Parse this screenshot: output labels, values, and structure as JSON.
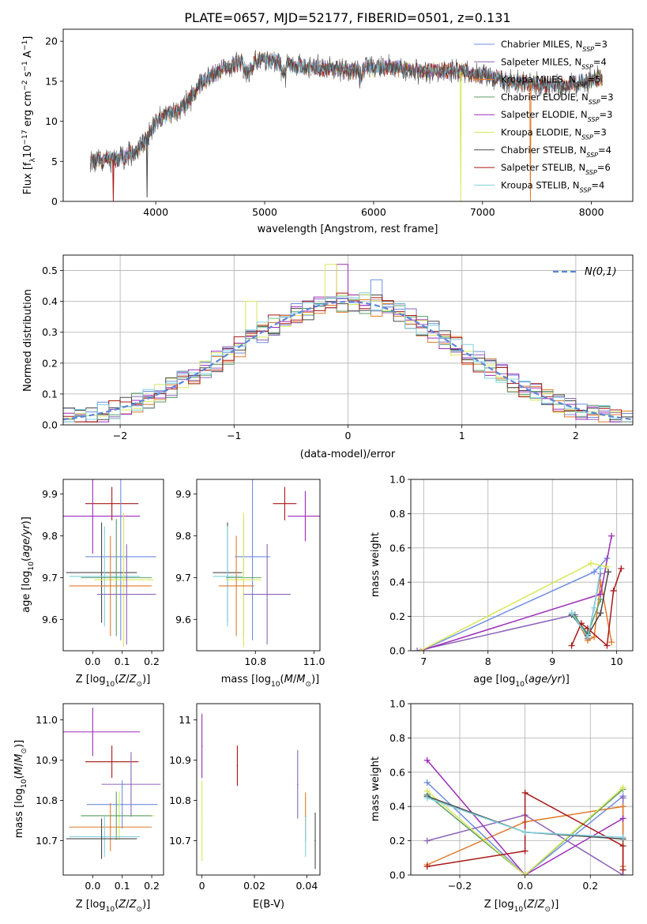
{
  "chart_data": [
    {
      "id": "spectrum",
      "type": "line",
      "title": "PLATE=0657, MJD=52177, FIBERID=0501, z=0.131",
      "xlabel": "wavelength [Angstrom, rest frame]",
      "ylabel": "Flux [fλ10⁻¹⁷ erg cm⁻² s⁻¹ A⁻¹]",
      "xlim": [
        3150,
        8380
      ],
      "ylim": [
        0,
        21.5
      ],
      "xticks": [
        4000,
        5000,
        6000,
        7000,
        8000
      ],
      "yticks": [
        0,
        5,
        10,
        15,
        20
      ],
      "grid": false,
      "legend_position": "right",
      "series": [
        {
          "name": "Chabrier MILES, NSSP=3",
          "color": "#6f8ee0"
        },
        {
          "name": "Salpeter MILES, NSSP=4",
          "color": "#8c64b8"
        },
        {
          "name": "Kroupa MILES, NSSP=5",
          "color": "#e07a2a"
        },
        {
          "name": "Chabrier ELODIE, NSSP=3",
          "color": "#5a9e6a"
        },
        {
          "name": "Salpeter ELODIE, NSSP=3",
          "color": "#9e2cb8"
        },
        {
          "name": "Kroupa ELODIE, NSSP=3",
          "color": "#d8e85a"
        },
        {
          "name": "Chabrier STELIB, NSSP=4",
          "color": "#4a4a4a"
        },
        {
          "name": "Salpeter STELIB, NSSP=6",
          "color": "#aa1818"
        },
        {
          "name": "Kroupa STELIB, NSSP=4",
          "color": "#7fd0e0"
        }
      ],
      "continuum": {
        "x": [
          3400,
          3600,
          3800,
          3900,
          4000,
          4100,
          4200,
          4300,
          4400,
          4500,
          4600,
          4700,
          4800,
          4900,
          5000,
          5200,
          5400,
          5600,
          5800,
          6000,
          6200,
          6400,
          6600,
          6800,
          7000,
          7200,
          7400,
          7600,
          7800,
          8000,
          8100
        ],
        "y": [
          5,
          5.2,
          6,
          7.5,
          10,
          10.7,
          11.2,
          12.5,
          14.5,
          15.6,
          16.5,
          17,
          17.5,
          17.5,
          17.6,
          17.3,
          16.8,
          16.6,
          16.3,
          16.7,
          16.7,
          16.2,
          16.3,
          16.2,
          15.8,
          15.1,
          14.7,
          14.4,
          14.5,
          15.2,
          15.4
        ]
      },
      "dips": [
        {
          "x": 3610,
          "y": 0,
          "series": "Salpeter STELIB, NSSP=6"
        },
        {
          "x": 3920,
          "y": 0.5,
          "series": "Chabrier STELIB, NSSP=4"
        },
        {
          "x": 6800,
          "y": 0,
          "series": "Kroupa ELODIE, NSSP=3"
        },
        {
          "x": 7440,
          "y": 0,
          "series": "Kroupa MILES, NSSP=5"
        }
      ]
    },
    {
      "id": "residuals",
      "type": "line",
      "xlabel": "(data-model)/error",
      "ylabel": "Normed distribution",
      "xlim": [
        -2.5,
        2.5
      ],
      "ylim": [
        0,
        0.55
      ],
      "xticks": [
        -2,
        -1,
        0,
        1,
        2
      ],
      "yticks": [
        0.0,
        0.1,
        0.2,
        0.3,
        0.4,
        0.5
      ],
      "grid": true,
      "legend": {
        "label": "N(0,1)",
        "position": "upper right"
      },
      "bin_width": 0.1,
      "gaussian": {
        "mean": 0,
        "sigma": 1
      },
      "histogram_peaks": [
        {
          "x": -0.15,
          "y": 0.52,
          "series": "Kroupa ELODIE, NSSP=3"
        },
        {
          "x": -0.05,
          "y": 0.52,
          "series": "Salpeter ELODIE, NSSP=3"
        },
        {
          "x": 0.25,
          "y": 0.47,
          "series": "Chabrier MILES, NSSP=3"
        },
        {
          "x": -0.85,
          "y": 0.4,
          "series": "Kroupa ELODIE, NSSP=3"
        }
      ]
    },
    {
      "id": "age_vs_Z",
      "type": "scatter",
      "xlabel": "Z [log10(Z/Z⊙)]",
      "ylabel": "age  [log10(age/yr)]",
      "xlim": [
        -0.1,
        0.24
      ],
      "ylim": [
        9.525,
        9.935
      ],
      "xticks": [
        0.0,
        0.1,
        0.2
      ],
      "yticks": [
        9.6,
        9.7,
        9.8,
        9.9
      ],
      "points": [
        {
          "series": "Salpeter STELIB, NSSP=6",
          "x": 0.065,
          "xerr": 0.09,
          "y": 9.877,
          "yerr": 0.04
        },
        {
          "series": "Salpeter ELODIE, NSSP=3",
          "x": 0.0,
          "xerr": 0.16,
          "y": 9.847,
          "yerr": 0.09
        },
        {
          "series": "Chabrier MILES, NSSP=3",
          "x": 0.095,
          "xerr": 0.12,
          "y": 9.75,
          "yerr": 0.2
        },
        {
          "series": "Chabrier STELIB, NSSP=4",
          "x": 0.03,
          "xerr": 0.12,
          "y": 9.712,
          "yerr": 0.12
        },
        {
          "series": "Kroupa STELIB, NSSP=4",
          "x": 0.04,
          "xerr": 0.12,
          "y": 9.703,
          "yerr": 0.12
        },
        {
          "series": "Chabrier ELODIE, NSSP=3",
          "x": 0.08,
          "xerr": 0.12,
          "y": 9.7,
          "yerr": 0.14
        },
        {
          "series": "Kroupa ELODIE, NSSP=3",
          "x": 0.105,
          "xerr": 0.1,
          "y": 9.695,
          "yerr": 0.16
        },
        {
          "series": "Kroupa MILES, NSSP=5",
          "x": 0.06,
          "xerr": 0.14,
          "y": 9.68,
          "yerr": 0.12
        },
        {
          "series": "Salpeter MILES, NSSP=4",
          "x": 0.115,
          "xerr": 0.1,
          "y": 9.66,
          "yerr": 0.12
        }
      ]
    },
    {
      "id": "age_vs_mass",
      "type": "scatter",
      "xlabel": "mass [log10(M/M⊙)]",
      "ylabel": "",
      "xlim": [
        10.6,
        11.02
      ],
      "ylim": [
        9.525,
        9.935
      ],
      "xticks": [
        10.8,
        11.0
      ],
      "yticks": [
        9.6,
        9.7,
        9.8,
        9.9
      ],
      "points": [
        {
          "series": "Salpeter STELIB, NSSP=6",
          "x": 10.9,
          "xerr": 0.04,
          "y": 9.877,
          "yerr": 0.04
        },
        {
          "series": "Salpeter ELODIE, NSSP=3",
          "x": 10.97,
          "xerr": 0.06,
          "y": 9.847,
          "yerr": 0.06
        },
        {
          "series": "Chabrier MILES, NSSP=3",
          "x": 10.79,
          "xerr": 0.06,
          "y": 9.75,
          "yerr": 0.2
        },
        {
          "series": "Chabrier STELIB, NSSP=4",
          "x": 10.705,
          "xerr": 0.05,
          "y": 9.712,
          "yerr": 0.12
        },
        {
          "series": "Kroupa STELIB, NSSP=4",
          "x": 10.705,
          "xerr": 0.05,
          "y": 9.703,
          "yerr": 0.12
        },
        {
          "series": "Chabrier ELODIE, NSSP=3",
          "x": 10.76,
          "xerr": 0.06,
          "y": 9.7,
          "yerr": 0.14
        },
        {
          "series": "Kroupa ELODIE, NSSP=3",
          "x": 10.76,
          "xerr": 0.06,
          "y": 9.695,
          "yerr": 0.16
        },
        {
          "series": "Kroupa MILES, NSSP=5",
          "x": 10.735,
          "xerr": 0.06,
          "y": 9.68,
          "yerr": 0.12
        },
        {
          "series": "Salpeter MILES, NSSP=4",
          "x": 10.84,
          "xerr": 0.08,
          "y": 9.66,
          "yerr": 0.12
        }
      ]
    },
    {
      "id": "weight_vs_age",
      "type": "line",
      "xlabel": "age  [log10(age/yr)]",
      "ylabel": "mass weight",
      "xlim": [
        6.8,
        10.25
      ],
      "ylim": [
        0,
        1.0
      ],
      "xticks": [
        7,
        8,
        9,
        10
      ],
      "yticks": [
        0.0,
        0.2,
        0.4,
        0.6,
        0.8,
        1.0
      ],
      "grid": true,
      "series": [
        {
          "name": "Chabrier MILES, NSSP=3",
          "x": [
            6.95,
            9.65,
            9.85
          ],
          "y": [
            0.0,
            0.46,
            0.54
          ]
        },
        {
          "name": "Salpeter MILES, NSSP=4",
          "x": [
            6.9,
            9.35,
            9.55,
            9.75
          ],
          "y": [
            0.0,
            0.21,
            0.07,
            0.45
          ]
        },
        {
          "name": "Kroupa MILES, NSSP=5",
          "x": [
            9.35,
            9.55,
            9.65,
            9.75,
            9.92
          ],
          "y": [
            0.2,
            0.06,
            0.08,
            0.4,
            0.05
          ]
        },
        {
          "name": "Chabrier ELODIE, NSSP=3",
          "x": [
            9.35,
            9.55,
            9.75
          ],
          "y": [
            0.2,
            0.1,
            0.3
          ]
        },
        {
          "name": "Salpeter ELODIE, NSSP=3",
          "x": [
            6.95,
            9.75,
            9.92
          ],
          "y": [
            0.0,
            0.33,
            0.67
          ]
        },
        {
          "name": "Kroupa ELODIE, NSSP=3",
          "x": [
            6.95,
            9.6,
            9.85
          ],
          "y": [
            0.0,
            0.51,
            0.49
          ]
        },
        {
          "name": "Chabrier STELIB, NSSP=4",
          "x": [
            9.3,
            9.55,
            9.75,
            9.87
          ],
          "y": [
            0.21,
            0.09,
            0.22,
            0.46
          ]
        },
        {
          "name": "Salpeter STELIB, NSSP=6",
          "x": [
            9.3,
            9.45,
            9.55,
            9.85,
            9.95,
            10.07
          ],
          "y": [
            0.03,
            0.16,
            0.13,
            0.03,
            0.35,
            0.48
          ]
        },
        {
          "name": "Kroupa STELIB, NSSP=4",
          "x": [
            9.3,
            9.55,
            9.65,
            9.75
          ],
          "y": [
            0.22,
            0.08,
            0.25,
            0.48
          ]
        }
      ]
    },
    {
      "id": "mass_vs_Z",
      "type": "scatter",
      "xlabel": "Z [log10(Z/Z⊙)]",
      "ylabel": "mass [log10(M/M⊙)]",
      "xlim": [
        -0.1,
        0.24
      ],
      "ylim": [
        10.615,
        11.04
      ],
      "xticks": [
        0.0,
        0.1,
        0.2
      ],
      "yticks": [
        10.7,
        10.8,
        10.9,
        11.0
      ],
      "points": [
        {
          "series": "Salpeter ELODIE, NSSP=3",
          "x": 0.0,
          "xerr": 0.16,
          "y": 10.97,
          "yerr": 0.06
        },
        {
          "series": "Salpeter STELIB, NSSP=6",
          "x": 0.065,
          "xerr": 0.09,
          "y": 10.896,
          "yerr": 0.04
        },
        {
          "series": "Salpeter MILES, NSSP=4",
          "x": 0.13,
          "xerr": 0.1,
          "y": 10.84,
          "yerr": 0.08
        },
        {
          "series": "Chabrier MILES, NSSP=3",
          "x": 0.1,
          "xerr": 0.12,
          "y": 10.79,
          "yerr": 0.06
        },
        {
          "series": "Kroupa ELODIE, NSSP=3",
          "x": 0.09,
          "xerr": 0.12,
          "y": 10.762,
          "yerr": 0.06
        },
        {
          "series": "Chabrier ELODIE, NSSP=3",
          "x": 0.08,
          "xerr": 0.12,
          "y": 10.762,
          "yerr": 0.06
        },
        {
          "series": "Kroupa MILES, NSSP=5",
          "x": 0.06,
          "xerr": 0.14,
          "y": 10.734,
          "yerr": 0.06
        },
        {
          "series": "Kroupa STELIB, NSSP=4",
          "x": 0.04,
          "xerr": 0.12,
          "y": 10.71,
          "yerr": 0.05
        },
        {
          "series": "Chabrier STELIB, NSSP=4",
          "x": 0.03,
          "xerr": 0.12,
          "y": 10.705,
          "yerr": 0.05
        }
      ]
    },
    {
      "id": "mass_vs_ebv",
      "type": "scatter",
      "xlabel": "E(B-V)",
      "ylabel": "",
      "xlim": [
        -0.002,
        0.045
      ],
      "ylim": [
        10.615,
        11.04
      ],
      "xticks": [
        0.0,
        0.02,
        0.04
      ],
      "yticks": [
        10.7,
        10.8,
        10.9,
        11.0
      ],
      "points": [
        {
          "series": "Salpeter ELODIE, NSSP=3",
          "x": 0.0,
          "y": 10.935,
          "yerr": 0.08
        },
        {
          "series": "Kroupa ELODIE, NSSP=3",
          "x": 0.0,
          "y": 10.75,
          "yerr": 0.1
        },
        {
          "series": "Salpeter STELIB, NSSP=6",
          "x": 0.0135,
          "y": 10.886,
          "yerr": 0.05
        },
        {
          "series": "Salpeter MILES, NSSP=4",
          "x": 0.0365,
          "y": 10.84,
          "yerr": 0.085
        },
        {
          "series": "Kroupa MILES, NSSP=5",
          "x": 0.0395,
          "y": 10.76,
          "yerr": 0.06
        },
        {
          "series": "Kroupa STELIB, NSSP=4",
          "x": 0.0395,
          "y": 10.71,
          "yerr": 0.05
        },
        {
          "series": "Chabrier STELIB, NSSP=4",
          "x": 0.0432,
          "y": 10.7,
          "yerr": 0.07
        }
      ]
    },
    {
      "id": "weight_vs_Z",
      "type": "line",
      "xlabel": "Z [log10(Z/Z⊙)]",
      "ylabel": "mass weight",
      "xlim": [
        -0.35,
        0.33
      ],
      "ylim": [
        0,
        1.0
      ],
      "xticks": [
        -0.2,
        0.0,
        0.2
      ],
      "yticks": [
        0.0,
        0.2,
        0.4,
        0.6,
        0.8,
        1.0
      ],
      "grid": true,
      "series": [
        {
          "name": "Chabrier MILES, NSSP=3",
          "x": [
            -0.3,
            0.0,
            0.3
          ],
          "y": [
            0.54,
            0.0,
            0.46
          ]
        },
        {
          "name": "Salpeter MILES, NSSP=4",
          "x": [
            -0.3,
            0.0,
            0.3,
            0.3
          ],
          "y": [
            0.2,
            0.35,
            0.0,
            0.45
          ]
        },
        {
          "name": "Kroupa MILES, NSSP=5",
          "x": [
            -0.3,
            0.0,
            0.3,
            0.3
          ],
          "y": [
            0.06,
            0.31,
            0.4,
            0.05
          ]
        },
        {
          "name": "Chabrier ELODIE, NSSP=3",
          "x": [
            -0.3,
            0.0,
            0.3
          ],
          "y": [
            0.47,
            0.0,
            0.5
          ]
        },
        {
          "name": "Salpeter ELODIE, NSSP=3",
          "x": [
            -0.3,
            0.0,
            0.3
          ],
          "y": [
            0.67,
            0.0,
            0.33
          ]
        },
        {
          "name": "Kroupa ELODIE, NSSP=3",
          "x": [
            -0.3,
            0.0,
            0.3
          ],
          "y": [
            0.49,
            0.0,
            0.51
          ]
        },
        {
          "name": "Chabrier STELIB, NSSP=4",
          "x": [
            -0.3,
            0.0,
            0.3
          ],
          "y": [
            0.46,
            0.25,
            0.21
          ]
        },
        {
          "name": "Salpeter STELIB, NSSP=6",
          "x": [
            -0.3,
            0.0,
            0.0,
            0.3,
            0.3
          ],
          "y": [
            0.05,
            0.14,
            0.48,
            0.17,
            0.03
          ]
        },
        {
          "name": "Kroupa STELIB, NSSP=4",
          "x": [
            -0.3,
            0.0,
            0.3
          ],
          "y": [
            0.45,
            0.25,
            0.22
          ]
        }
      ]
    }
  ]
}
